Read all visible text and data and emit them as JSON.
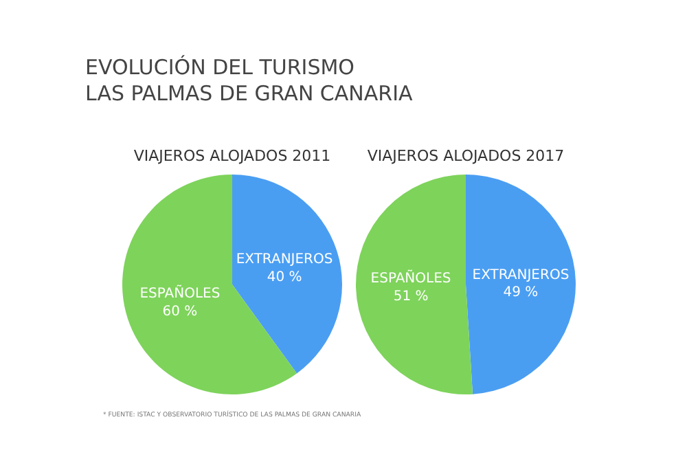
{
  "chart_data": [
    {
      "type": "other",
      "title": "EVOLUCIÓN DEL TURISMO\nLAS PALMAS DE GRAN CANARIA",
      "annotations": [
        "* FUENTE: ISTAC Y OBSERVATORIO TURÍSTICO DE LAS PALMAS DE GRAN CANARIA"
      ]
    },
    {
      "type": "pie",
      "title": "VIAJEROS ALOJADOS 2011",
      "categories": [
        "EXTRANJEROS",
        "ESPAÑOLES"
      ],
      "values": [
        40,
        60
      ],
      "colors": [
        "#4a9ef2",
        "#7ed35b"
      ],
      "value_labels": [
        "40 %",
        "60 %"
      ]
    },
    {
      "type": "pie",
      "title": "VIAJEROS ALOJADOS 2017",
      "categories": [
        "EXTRANJEROS",
        "ESPAÑOLES"
      ],
      "values": [
        49,
        51
      ],
      "colors": [
        "#4a9ef2",
        "#7ed35b"
      ],
      "value_labels": [
        "49 %",
        "51 %"
      ]
    }
  ]
}
